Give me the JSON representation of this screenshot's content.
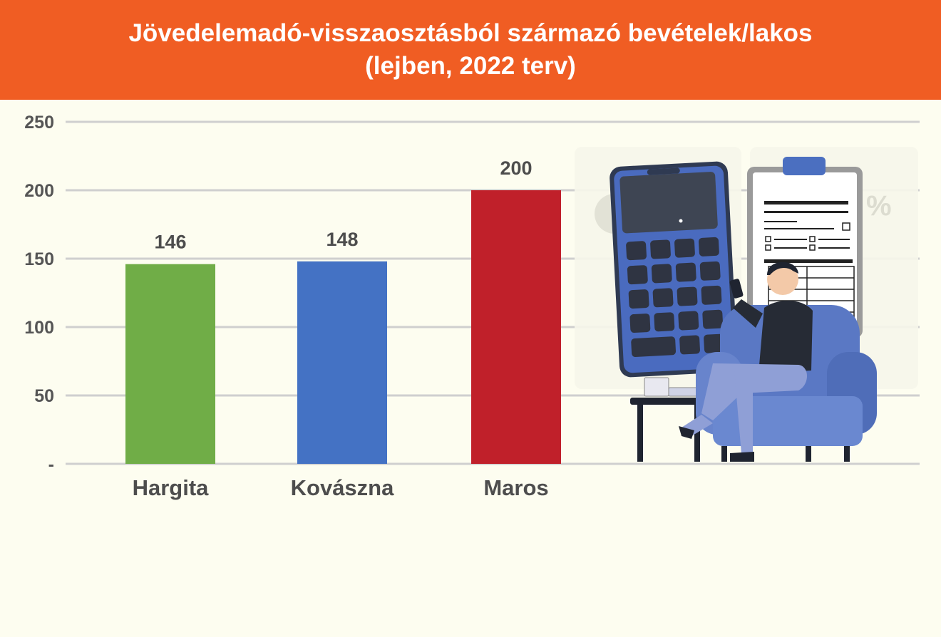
{
  "chart_data": {
    "type": "bar",
    "title": "Jövedelemadó-visszaosztásból származó bevételek/lakos",
    "subtitle": "(lejben, 2022 terv)",
    "categories": [
      "Hargita",
      "Kovászna",
      "Maros"
    ],
    "values": [
      146,
      148,
      200
    ],
    "value_labels": [
      "146",
      "148",
      "200"
    ],
    "colors": [
      "#70ad47",
      "#4472c4",
      "#c0202a"
    ],
    "ylim": [
      0,
      250
    ],
    "yticks": [
      0,
      50,
      100,
      150,
      200,
      250
    ],
    "ytick_labels": [
      "-",
      "50",
      "100",
      "150",
      "200",
      "250"
    ],
    "grid": true,
    "grid_color": "#cfcfcf",
    "xlabel": "",
    "ylabel": ""
  },
  "colors": {
    "title_bar": "#f05d23",
    "background": "#fdfdf0"
  },
  "illustration": {
    "description_icons": [
      "calculator-phone-icon",
      "clipboard-icon",
      "armchair-icon",
      "person-icon",
      "side-table-icon"
    ]
  }
}
